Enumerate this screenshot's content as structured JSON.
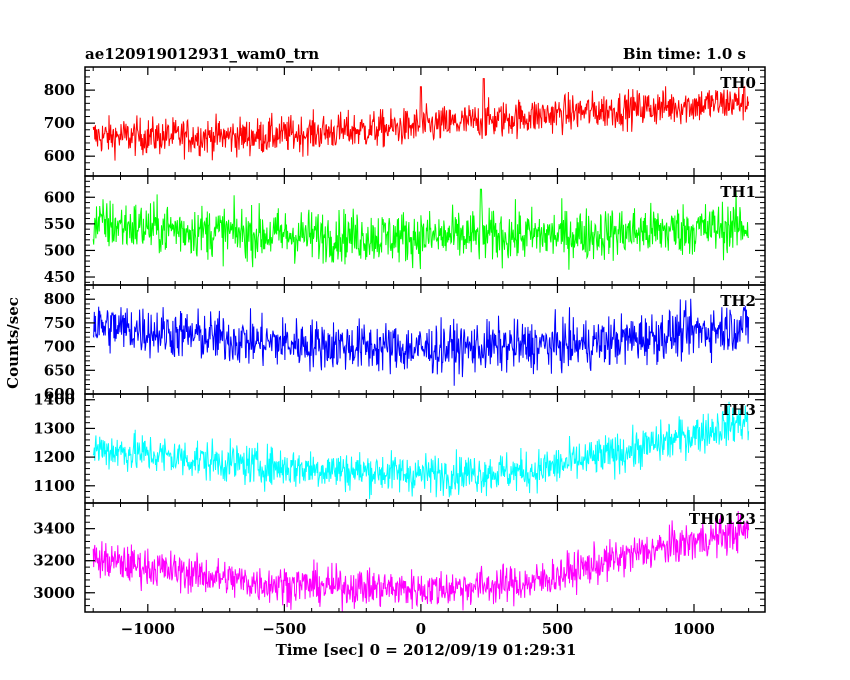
{
  "chart_data": {
    "type": "line",
    "title_left": "ae120919012931_wam0_trn",
    "title_right": "Bin time: 1.0 s",
    "xlabel": "Time [sec] 0 = 2012/09/19 01:29:31",
    "ylabel": "Counts/sec",
    "xlim": [
      -1230,
      1260
    ],
    "x_ticks": [
      -1000,
      -500,
      0,
      500,
      1000
    ],
    "x_tick_labels": [
      "−1000",
      "−500",
      "0",
      "500",
      "1000"
    ],
    "data_x_range": [
      -1200,
      1200
    ],
    "bin_time_s": 1.0,
    "grid": false,
    "panels": [
      {
        "name": "TH0",
        "color": "#ff0000",
        "ylim": [
          540,
          870
        ],
        "yticks": [
          600,
          700,
          800
        ],
        "trend": {
          "x": [
            -1200,
            -600,
            0,
            600,
            1200
          ],
          "y": [
            660,
            660,
            690,
            735,
            765
          ]
        },
        "noise": 40,
        "spikes": [
          {
            "x": 0,
            "y": 810
          },
          {
            "x": 230,
            "y": 835
          }
        ]
      },
      {
        "name": "TH1",
        "color": "#00ff00",
        "ylim": [
          435,
          640
        ],
        "yticks": [
          450,
          500,
          550,
          600
        ],
        "trend": {
          "x": [
            -1200,
            -600,
            0,
            600,
            1200
          ],
          "y": [
            550,
            530,
            525,
            530,
            545
          ]
        },
        "noise": 35,
        "spikes": [
          {
            "x": 220,
            "y": 615
          }
        ]
      },
      {
        "name": "TH2",
        "color": "#0000ff",
        "ylim": [
          600,
          830
        ],
        "yticks": [
          600,
          650,
          700,
          750,
          800
        ],
        "trend": {
          "x": [
            -1200,
            -600,
            0,
            600,
            1200
          ],
          "y": [
            745,
            710,
            695,
            705,
            745
          ]
        },
        "noise": 38,
        "spikes": []
      },
      {
        "name": "TH3",
        "color": "#00ffff",
        "ylim": [
          1040,
          1420
        ],
        "yticks": [
          1100,
          1200,
          1300,
          1400
        ],
        "trend": {
          "x": [
            -1200,
            -600,
            0,
            400,
            800,
            1200
          ],
          "y": [
            1230,
            1170,
            1140,
            1150,
            1230,
            1330
          ]
        },
        "noise": 50,
        "spikes": []
      },
      {
        "name": "TH0123",
        "color": "#ff00ff",
        "ylim": [
          2880,
          3560
        ],
        "yticks": [
          3000,
          3200,
          3400
        ],
        "trend": {
          "x": [
            -1200,
            -600,
            0,
            400,
            800,
            1200
          ],
          "y": [
            3210,
            3060,
            3020,
            3060,
            3250,
            3390
          ]
        },
        "noise": 85,
        "spikes": []
      }
    ]
  }
}
